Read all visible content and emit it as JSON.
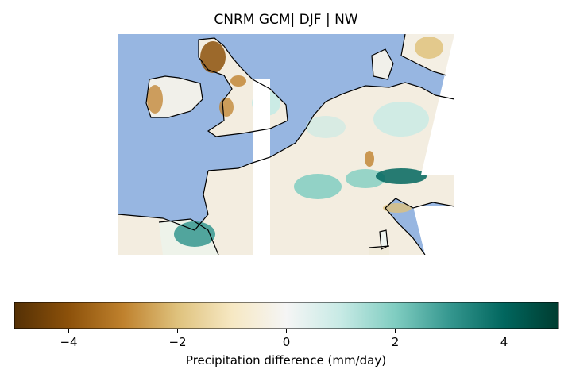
{
  "title": "CNRM GCM| DJF | NW",
  "colorbar": {
    "label": "Precipitation difference (mm/day)",
    "min": -5,
    "max": 5,
    "ticks": [
      -4,
      -2,
      0,
      2,
      4
    ],
    "tick_labels": [
      "−4",
      "−2",
      "0",
      "2",
      "4"
    ],
    "colormap": "BrBG",
    "colors": [
      "#543005",
      "#8c510a",
      "#bf812d",
      "#dfc27d",
      "#f6e8c3",
      "#f5f5f5",
      "#c7eae5",
      "#80cdc1",
      "#35978f",
      "#01665e",
      "#003c30"
    ]
  },
  "colors": {
    "ocean": "#97b6e1",
    "coastline": "#000000",
    "missing": "#ffffff"
  }
}
